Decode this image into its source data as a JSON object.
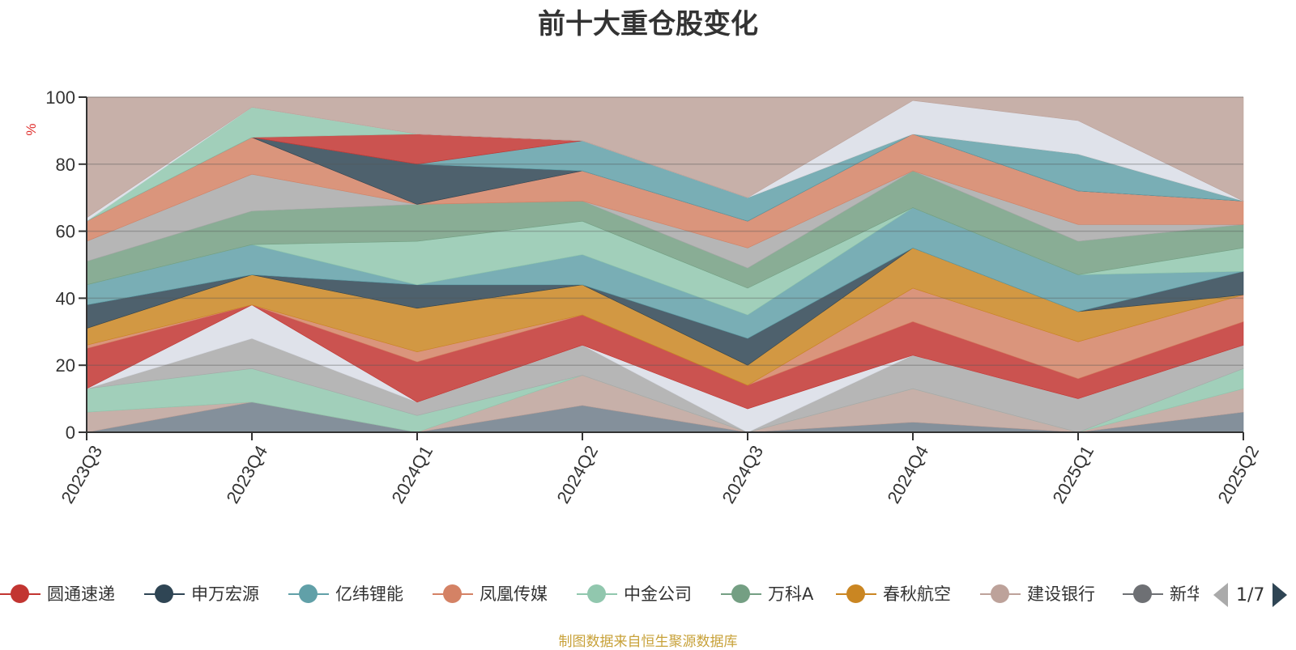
{
  "title": "前十大重仓股变化",
  "source_note": "制图数据来自恒生聚源数据库",
  "chart_data": {
    "type": "area",
    "title": "前十大重仓股变化",
    "ylabel": "%",
    "ylim": [
      0,
      100
    ],
    "yticks": [
      0,
      20,
      40,
      60,
      80,
      100
    ],
    "categories": [
      "2023Q3",
      "2023Q4",
      "2024Q1",
      "2024Q2",
      "2024Q3",
      "2024Q4",
      "2025Q1",
      "2025Q2"
    ],
    "grid": true,
    "legend_position": "bottom",
    "legend": {
      "page_text": "1/7",
      "items": [
        {
          "name": "圆通速递",
          "color": "#c23531"
        },
        {
          "name": "申万宏源",
          "color": "#2f4554"
        },
        {
          "name": "亿纬锂能",
          "color": "#61a0a8"
        },
        {
          "name": "凤凰传媒",
          "color": "#d48265"
        },
        {
          "name": "中金公司",
          "color": "#91c7ae"
        },
        {
          "name": "万科A",
          "color": "#749f83"
        },
        {
          "name": "春秋航空",
          "color": "#ca8622"
        },
        {
          "name": "建设银行",
          "color": "#bda29a"
        },
        {
          "name": "新华",
          "color": "#6e7074"
        }
      ]
    },
    "layer_colors": [
      "#6e7d8a",
      "#bda29a",
      "#91c7ae",
      "#a9a9a9",
      "#d9dde6",
      "#c23531",
      "#d48265",
      "#ca8622",
      "#2f4554",
      "#61a0a8",
      "#91c7ae",
      "#749f83",
      "#a9a9a9",
      "#d48265",
      "#2f4554",
      "#61a0a8",
      "#c23531",
      "#91c7ae",
      "#d9dde6",
      "#bda29a",
      "#6e7d8a"
    ],
    "stack_boundaries": [
      [
        0,
        0,
        0,
        0,
        0,
        0,
        0,
        0
      ],
      [
        0,
        9,
        0,
        8,
        0,
        3,
        0,
        6
      ],
      [
        6,
        9,
        0,
        17,
        0,
        13,
        0,
        13
      ],
      [
        13,
        19,
        5,
        17,
        0,
        13,
        0,
        19
      ],
      [
        13,
        28,
        9,
        26,
        0,
        23,
        10,
        26
      ],
      [
        13,
        38,
        9,
        26,
        7,
        23,
        10,
        26
      ],
      [
        25,
        38,
        21,
        35,
        14,
        33,
        16,
        33
      ],
      [
        26,
        38,
        24,
        35,
        14,
        43,
        27,
        41
      ],
      [
        31,
        47,
        37,
        44,
        20,
        55,
        36,
        41
      ],
      [
        38,
        47,
        44,
        44,
        28,
        55,
        36,
        48
      ],
      [
        44,
        56,
        44,
        53,
        35,
        67,
        47,
        48
      ],
      [
        44,
        56,
        57,
        63,
        43,
        67,
        47,
        55
      ],
      [
        51,
        66,
        68,
        69,
        49,
        78,
        57,
        62
      ],
      [
        57,
        77,
        68,
        69,
        55,
        78,
        62,
        62
      ],
      [
        63,
        88,
        68,
        78,
        63,
        89,
        72,
        69
      ],
      [
        63,
        88,
        80,
        78,
        63,
        89,
        72,
        69
      ],
      [
        63,
        88,
        80,
        87,
        70,
        89,
        83,
        69
      ],
      [
        63,
        88,
        89,
        87,
        70,
        89,
        83,
        69
      ],
      [
        63,
        97,
        89,
        87,
        70,
        89,
        83,
        69
      ],
      [
        64,
        97,
        89,
        87,
        70,
        99,
        93,
        69
      ],
      [
        100,
        100,
        100,
        100,
        100,
        100,
        100,
        100
      ]
    ]
  }
}
